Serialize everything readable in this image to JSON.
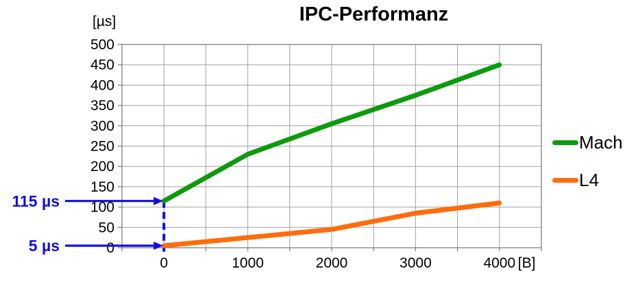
{
  "title": "IPC-Performanz",
  "colors": {
    "mach_green": "#0c9b0c",
    "l4_orange": "#ff6c0b",
    "annotation_blue": "#0e0ee8",
    "gridline_gray": "#a0a0a0",
    "axis_gray": "#808080",
    "text_black": "#000000"
  },
  "chart_data": {
    "type": "line",
    "title": "IPC-Performanz",
    "xlabel": "[B]",
    "ylabel": "[µs]",
    "x": [
      0,
      1000,
      2000,
      3000,
      4000
    ],
    "series": [
      {
        "name": "Mach",
        "color": "#0c9b0c",
        "values": [
          115,
          230,
          305,
          375,
          450
        ]
      },
      {
        "name": "L4",
        "color": "#ff6c0b",
        "values": [
          5,
          25,
          45,
          85,
          110
        ]
      }
    ],
    "xlim": [
      -500,
      4500
    ],
    "ylim": [
      0,
      500
    ],
    "x_label_ticks": [
      0,
      1000,
      2000,
      3000,
      4000
    ],
    "x_gridlines": [
      -500,
      0,
      500,
      1000,
      1500,
      2000,
      2500,
      3000,
      3500,
      4000,
      4500
    ],
    "y_ticks": [
      0,
      50,
      100,
      150,
      200,
      250,
      300,
      350,
      400,
      450,
      500
    ],
    "grid": true,
    "legend_position": "right",
    "annotations": [
      {
        "label": "115 µs",
        "series": "Mach",
        "x": 0,
        "value": 115,
        "color": "#0e0ee8"
      },
      {
        "label": "5 µs",
        "series": "L4",
        "x": 0,
        "value": 5,
        "color": "#0e0ee8"
      }
    ]
  }
}
